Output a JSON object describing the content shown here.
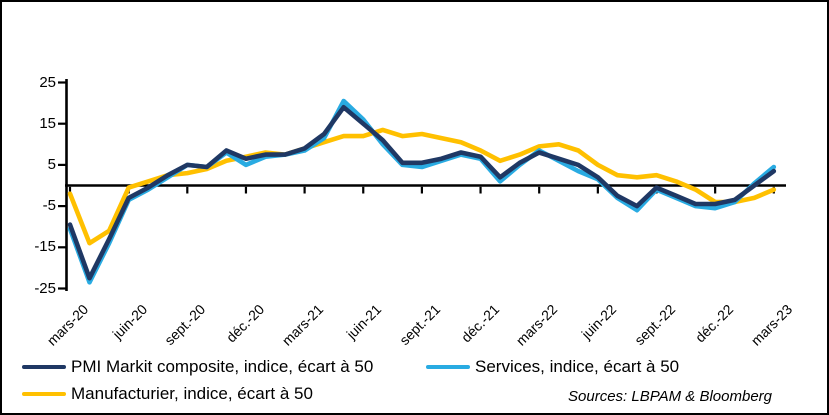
{
  "figure": {
    "background": "#FFFFFF",
    "border_color": "#000000",
    "axis_color": "#000000"
  },
  "chart_data": {
    "type": "line",
    "title": "",
    "xlabel": "",
    "ylabel": "",
    "ylim": [
      -25,
      25
    ],
    "y_ticks": [
      25,
      15,
      5,
      -5,
      -15,
      -25
    ],
    "zero_line": true,
    "grid": false,
    "legend_position": "bottom-left",
    "tick_every": 3,
    "categories": [
      "mars-20",
      "avr.-20",
      "mai-20",
      "juin-20",
      "juil.-20",
      "août-20",
      "sept.-20",
      "oct.-20",
      "nov.-20",
      "déc.-20",
      "janv.-21",
      "févr.-21",
      "mars-21",
      "avr.-21",
      "mai-21",
      "juin-21",
      "juil.-21",
      "août-21",
      "sept.-21",
      "oct.-21",
      "nov.-21",
      "déc.-21",
      "janv.-22",
      "févr.-22",
      "mars-22",
      "avr.-22",
      "mai-22",
      "juin-22",
      "juil.-22",
      "août-22",
      "sept.-22",
      "oct.-22",
      "nov.-22",
      "déc.-22",
      "janv.-23",
      "févr.-23",
      "mars-23"
    ],
    "x_tick_labels_shown": [
      "mars-20",
      "juin-20",
      "sept.-20",
      "déc.-20",
      "mars-21",
      "juin-21",
      "sept.-21",
      "déc.-21",
      "mars-22",
      "juin-22",
      "sept.-22",
      "déc.-22",
      "mars-23"
    ],
    "series": [
      {
        "key": "composite",
        "name": "PMI Markit composite, indice, écart à 50",
        "color": "#1F3864",
        "values": [
          -9.5,
          -22.5,
          -13,
          -3,
          -0.5,
          2.5,
          5,
          4.5,
          8.5,
          6.5,
          7.5,
          7.5,
          9,
          12.5,
          19,
          15,
          11,
          5.5,
          5.5,
          6.5,
          8,
          7,
          2,
          5.5,
          8,
          6.5,
          5,
          2,
          -2.5,
          -5,
          -0.5,
          -2.5,
          -4.5,
          -4.5,
          -3.5,
          0,
          3.5
        ]
      },
      {
        "key": "services",
        "name": "Services, indice, écart à 50",
        "color": "#29ABE2",
        "values": [
          -10.5,
          -23.5,
          -14,
          -3.5,
          -1,
          2,
          5,
          4.5,
          8,
          5,
          7,
          7.5,
          8.5,
          11.5,
          20.5,
          16,
          10,
          5,
          4.5,
          6,
          7.5,
          6.5,
          1,
          5,
          8.5,
          6,
          3.5,
          1.5,
          -3,
          -6,
          -1,
          -3,
          -5,
          -5.5,
          -4,
          0.5,
          4.5
        ]
      },
      {
        "key": "manufacturier",
        "name": "Manufacturier, indice, écart à 50",
        "color": "#FFC000",
        "values": [
          -2,
          -14,
          -11,
          -0.5,
          1,
          2.5,
          3,
          4,
          6,
          7,
          8,
          7.5,
          9,
          10.5,
          12,
          12,
          13.5,
          12,
          12.5,
          11.5,
          10.5,
          8.5,
          6,
          7.5,
          9.5,
          10,
          8.5,
          5,
          2.5,
          2,
          2.5,
          1,
          -1,
          -4,
          -4,
          -3,
          -1
        ]
      }
    ]
  },
  "sources_note": "Sources: LBPAM & Bloomberg"
}
